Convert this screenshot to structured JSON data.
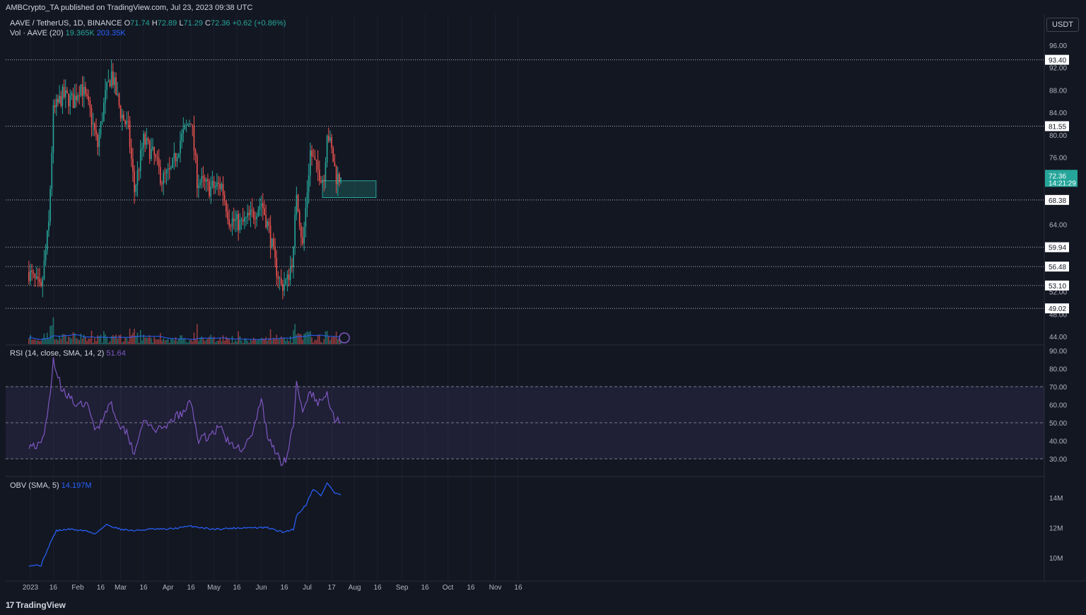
{
  "header": {
    "publish_line": "AMBCrypto_TA published on TradingView.com, Jul 23, 2023 09:38 UTC"
  },
  "legend": {
    "symbol": "AAVE / TetherUS, 1D, BINANCE",
    "o_label": "O",
    "o_value": "71.74",
    "h_label": "H",
    "h_value": "72.89",
    "l_label": "L",
    "l_value": "71.29",
    "c_label": "C",
    "c_value": "72.36",
    "change": "+0.62 (+0.86%)",
    "vol_label": "Vol · AAVE (20)",
    "vol_value": "19.365K",
    "vol_ma": "203.35K",
    "rsi_label": "RSI (14, close, SMA, 14, 2)",
    "rsi_value": "51.64",
    "obv_label": "OBV (SMA, 5)",
    "obv_value": "14.197M"
  },
  "currency_button": "USDT",
  "brand": {
    "name": "TradingView",
    "logo_text": "17"
  },
  "colors": {
    "background": "#131722",
    "up": "#26a69a",
    "down": "#ef5350",
    "rsi": "#7e57c2",
    "obv": "#2962ff",
    "zone": "#26a69a",
    "text": "#b2b5be"
  },
  "chart_data": {
    "type": "candlestick",
    "x_ticks": [
      "2023",
      "16",
      "Feb",
      "16",
      "Mar",
      "16",
      "Apr",
      "16",
      "May",
      "16",
      "Jun",
      "16",
      "Jul",
      "17",
      "Aug",
      "16",
      "Sep",
      "16",
      "Oct",
      "16",
      "Nov",
      "16"
    ],
    "price_axis": {
      "range": [
        44,
        96
      ],
      "ticks": [
        "96.00",
        "92.00",
        "88.00",
        "84.00",
        "80.00",
        "76.00",
        "64.00",
        "52.00",
        "48.00",
        "44.00"
      ]
    },
    "levels": [
      "93.40",
      "81.55",
      "68.38",
      "59.94",
      "56.48",
      "53.10",
      "49.02"
    ],
    "current_price": {
      "value": "72.36",
      "countdown": "14:21:29"
    },
    "zone": {
      "from_date": "2023-07-11",
      "to_date": "2023-08-15",
      "low": 68.8,
      "high": 71.8
    },
    "candles_keypoints": [
      [
        "2022-12-31",
        55.5
      ],
      [
        "2023-01-08",
        52
      ],
      [
        "2023-01-13",
        64
      ],
      [
        "2023-01-16",
        84
      ],
      [
        "2023-01-22",
        87
      ],
      [
        "2023-01-29",
        86
      ],
      [
        "2023-02-03",
        89
      ],
      [
        "2023-02-09",
        84
      ],
      [
        "2023-02-14",
        78
      ],
      [
        "2023-02-19",
        87
      ],
      [
        "2023-02-23",
        91
      ],
      [
        "2023-03-01",
        84
      ],
      [
        "2023-03-06",
        81
      ],
      [
        "2023-03-10",
        70
      ],
      [
        "2023-03-16",
        79
      ],
      [
        "2023-03-23",
        76
      ],
      [
        "2023-03-28",
        72
      ],
      [
        "2023-04-03",
        73.5
      ],
      [
        "2023-04-09",
        79
      ],
      [
        "2023-04-16",
        83
      ],
      [
        "2023-04-20",
        72
      ],
      [
        "2023-04-28",
        70.5
      ],
      [
        "2023-05-06",
        71
      ],
      [
        "2023-05-11",
        65
      ],
      [
        "2023-05-19",
        64
      ],
      [
        "2023-05-27",
        66
      ],
      [
        "2023-06-01",
        68
      ],
      [
        "2023-06-06",
        63
      ],
      [
        "2023-06-10",
        57
      ],
      [
        "2023-06-14",
        53
      ],
      [
        "2023-06-18",
        54
      ],
      [
        "2023-06-22",
        59
      ],
      [
        "2023-06-24",
        70
      ],
      [
        "2023-06-28",
        60
      ],
      [
        "2023-07-03",
        77
      ],
      [
        "2023-07-07",
        74
      ],
      [
        "2023-07-12",
        72
      ],
      [
        "2023-07-14",
        81
      ],
      [
        "2023-07-17",
        77
      ],
      [
        "2023-07-20",
        72.5
      ],
      [
        "2023-07-23",
        72.36
      ]
    ],
    "rsi": {
      "range": [
        25,
        92
      ],
      "ticks": [
        "90.00",
        "80.00",
        "70.00",
        "60.00",
        "50.00",
        "40.00",
        "30.00"
      ],
      "band": [
        30,
        70
      ],
      "midline": 50,
      "keypoints": [
        [
          "2022-12-31",
          38
        ],
        [
          "2023-01-08",
          37
        ],
        [
          "2023-01-12",
          52
        ],
        [
          "2023-01-16",
          85
        ],
        [
          "2023-01-21",
          70
        ],
        [
          "2023-01-26",
          65
        ],
        [
          "2023-02-01",
          58
        ],
        [
          "2023-02-06",
          62
        ],
        [
          "2023-02-12",
          47
        ],
        [
          "2023-02-16",
          50
        ],
        [
          "2023-02-22",
          62
        ],
        [
          "2023-03-01",
          48
        ],
        [
          "2023-03-05",
          45
        ],
        [
          "2023-03-10",
          33
        ],
        [
          "2023-03-15",
          50
        ],
        [
          "2023-03-23",
          47
        ],
        [
          "2023-03-29",
          45
        ],
        [
          "2023-04-05",
          53
        ],
        [
          "2023-04-11",
          55
        ],
        [
          "2023-04-16",
          62
        ],
        [
          "2023-04-21",
          40
        ],
        [
          "2023-04-28",
          43
        ],
        [
          "2023-05-05",
          48
        ],
        [
          "2023-05-12",
          37
        ],
        [
          "2023-05-19",
          36
        ],
        [
          "2023-05-26",
          42
        ],
        [
          "2023-06-01",
          64
        ],
        [
          "2023-06-05",
          42
        ],
        [
          "2023-06-10",
          35
        ],
        [
          "2023-06-14",
          28
        ],
        [
          "2023-06-18",
          31
        ],
        [
          "2023-06-22",
          50
        ],
        [
          "2023-06-24",
          71
        ],
        [
          "2023-06-28",
          55
        ],
        [
          "2023-07-03",
          68
        ],
        [
          "2023-07-08",
          60
        ],
        [
          "2023-07-14",
          66
        ],
        [
          "2023-07-19",
          52
        ],
        [
          "2023-07-23",
          51.64
        ]
      ]
    },
    "obv": {
      "range": [
        9.2,
        15.4
      ],
      "ticks": [
        "14M",
        "12M",
        "10M"
      ],
      "keypoints": [
        [
          "2022-12-31",
          9.5
        ],
        [
          "2023-01-08",
          9.5
        ],
        [
          "2023-01-14",
          11
        ],
        [
          "2023-01-18",
          11.8
        ],
        [
          "2023-01-26",
          11.9
        ],
        [
          "2023-02-06",
          11.8
        ],
        [
          "2023-02-12",
          11.6
        ],
        [
          "2023-02-20",
          12.2
        ],
        [
          "2023-03-01",
          11.9
        ],
        [
          "2023-03-10",
          11.8
        ],
        [
          "2023-03-20",
          11.9
        ],
        [
          "2023-04-01",
          11.9
        ],
        [
          "2023-04-16",
          12.1
        ],
        [
          "2023-05-01",
          11.9
        ],
        [
          "2023-05-20",
          12.0
        ],
        [
          "2023-06-05",
          12.0
        ],
        [
          "2023-06-15",
          11.7
        ],
        [
          "2023-06-22",
          11.9
        ],
        [
          "2023-06-24",
          12.8
        ],
        [
          "2023-06-30",
          13.5
        ],
        [
          "2023-07-05",
          14.6
        ],
        [
          "2023-07-10",
          14.1
        ],
        [
          "2023-07-14",
          15.0
        ],
        [
          "2023-07-19",
          14.3
        ],
        [
          "2023-07-23",
          14.197
        ]
      ]
    }
  }
}
